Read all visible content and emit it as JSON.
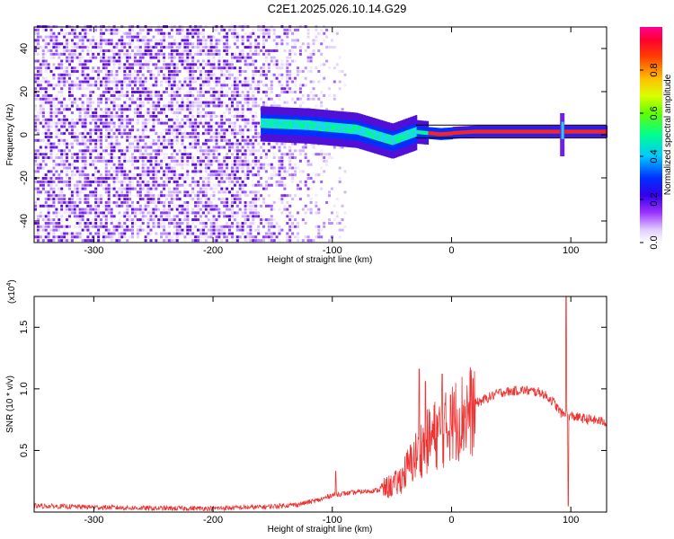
{
  "figure_title": "C2E1.2025.026.10.14.G29",
  "chart_data": [
    {
      "type": "heatmap",
      "xlabel": "Height of straight line (km)",
      "ylabel": "Frequency (Hz)",
      "xlim": [
        -350,
        130
      ],
      "ylim": [
        -50,
        50
      ],
      "x_ticks": [
        -300,
        -200,
        -100,
        0,
        100
      ],
      "y_ticks": [
        -40,
        -20,
        0,
        20,
        40
      ],
      "colorbar": {
        "label": "Normalized spectral amplitude",
        "range": [
          0.0,
          1.0
        ],
        "ticks": [
          0.0,
          0.2,
          0.4,
          0.6,
          0.8
        ],
        "colormap": [
          "#ffffff",
          "#e8d8ff",
          "#9b30ff",
          "#5500cc",
          "#0000ff",
          "#00c8ff",
          "#00ff80",
          "#80ff00",
          "#ffff00",
          "#ff8000",
          "#ff0000",
          "#ff0080"
        ]
      },
      "features": {
        "noise_region_x": [
          -350,
          -120
        ],
        "signal_line": [
          [
            -160,
            5
          ],
          [
            -120,
            4
          ],
          [
            -80,
            2
          ],
          [
            -50,
            -3
          ],
          [
            -30,
            1
          ],
          [
            -10,
            0
          ],
          [
            20,
            1
          ],
          [
            60,
            1
          ],
          [
            90,
            1
          ],
          [
            130,
            1
          ]
        ],
        "spike_at_x": 92
      }
    },
    {
      "type": "line",
      "xlabel": "Height of straight line (km)",
      "ylabel": "SNR (10 * v/v)",
      "y_scale_label": "(x10",
      "y_scale_exp": "4",
      "xlim": [
        -350,
        130
      ],
      "ylim": [
        0,
        1.75
      ],
      "x_ticks": [
        -300,
        -200,
        -100,
        0,
        100
      ],
      "y_ticks": [
        0.5,
        1.0,
        1.5
      ],
      "y_tick_labels": [
        "0.5",
        "1.0",
        "1.5"
      ],
      "color": "#ee3333",
      "envelope": [
        [
          -350,
          0.05
        ],
        [
          -300,
          0.04
        ],
        [
          -250,
          0.03
        ],
        [
          -200,
          0.03
        ],
        [
          -160,
          0.04
        ],
        [
          -130,
          0.06
        ],
        [
          -110,
          0.1
        ],
        [
          -100,
          0.14
        ],
        [
          -80,
          0.16
        ],
        [
          -60,
          0.18
        ],
        [
          -45,
          0.25
        ],
        [
          -35,
          0.4
        ],
        [
          -25,
          0.55
        ],
        [
          -15,
          0.65
        ],
        [
          -5,
          0.7
        ],
        [
          5,
          0.8
        ],
        [
          20,
          0.88
        ],
        [
          40,
          0.97
        ],
        [
          60,
          0.99
        ],
        [
          75,
          0.97
        ],
        [
          85,
          0.9
        ],
        [
          92,
          0.8
        ],
        [
          100,
          0.78
        ],
        [
          110,
          0.76
        ],
        [
          130,
          0.73
        ]
      ],
      "spikes": [
        [
          -97,
          0.33
        ],
        [
          -27,
          1.16
        ],
        [
          -22,
          1.06
        ],
        [
          -8,
          1.12
        ],
        [
          -1,
          0.95
        ],
        [
          96,
          1.75
        ],
        [
          98,
          0.05
        ]
      ]
    }
  ]
}
